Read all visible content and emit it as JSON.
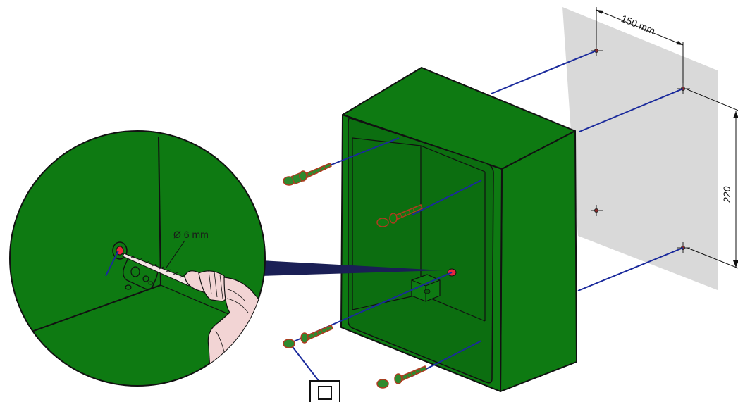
{
  "dimensions": {
    "horizontal_spacing": "150 mm",
    "vertical_spacing": "220"
  },
  "drill": {
    "diameter_label": "Ø 6 mm"
  },
  "symbols": {
    "double_insulation_icon": "double-square-icon"
  },
  "colors": {
    "enclosure_green": "#0e7a12",
    "enclosure_dark": "#0a5c0d",
    "wall_gray": "#d9d9d9",
    "guide_line_blue": "#1a2a9c",
    "screw_red": "#c0352a",
    "hole_red": "#e8273d",
    "drill_skin": "#f2d4d4"
  }
}
